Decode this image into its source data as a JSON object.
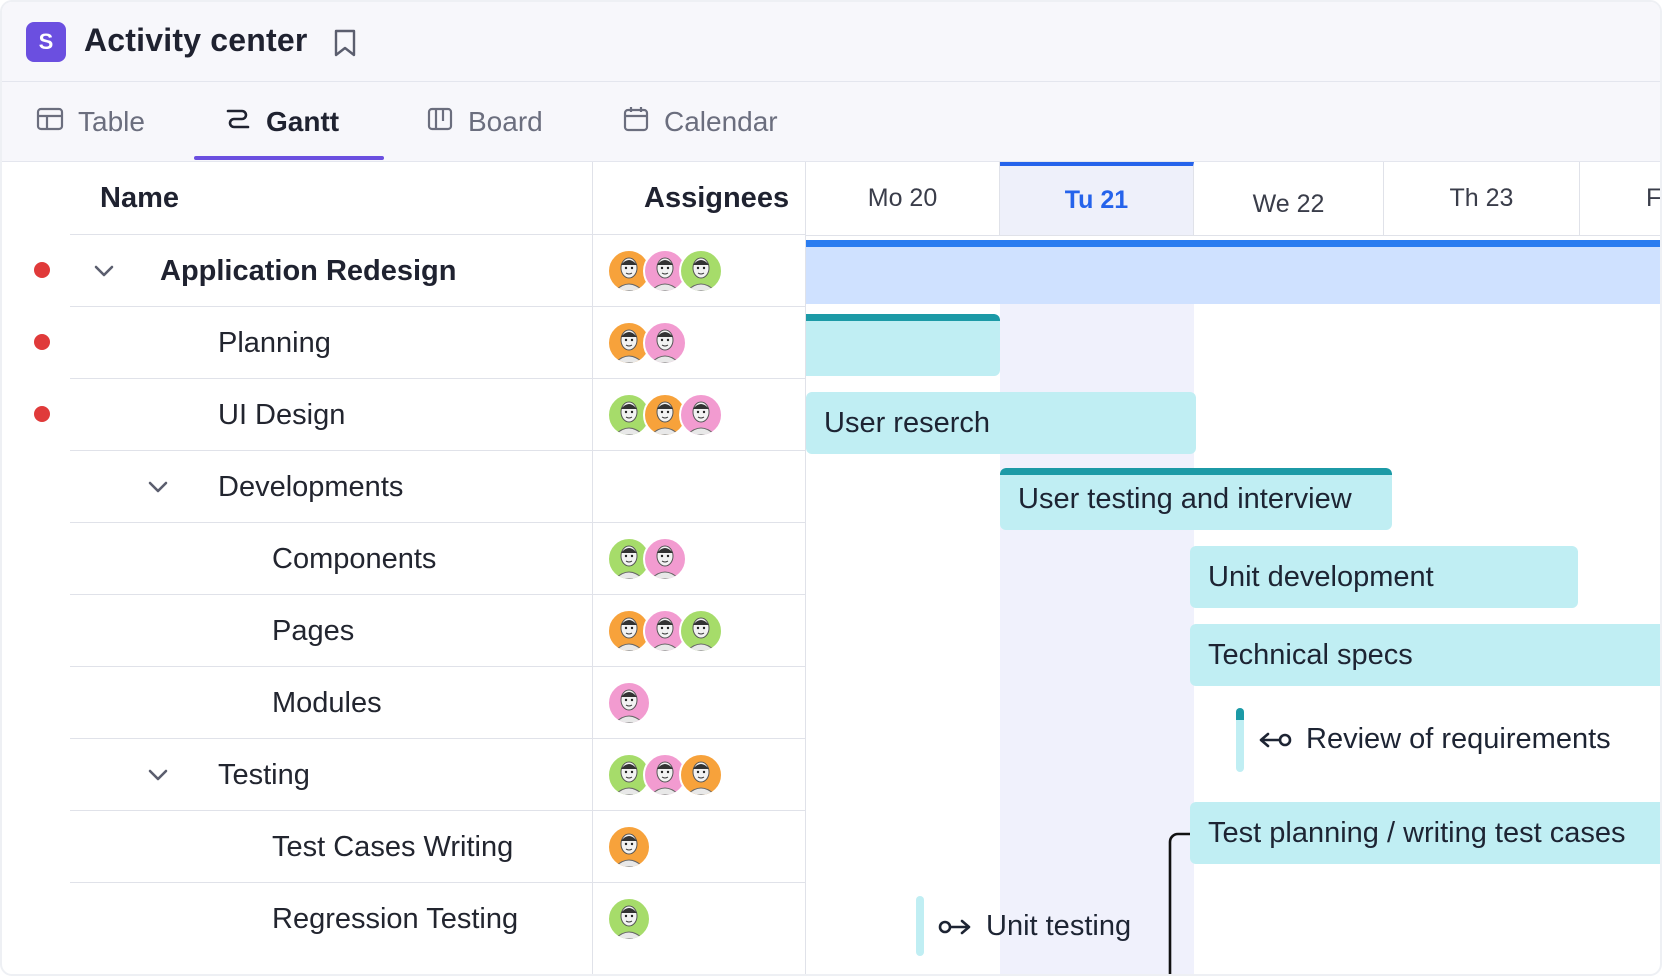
{
  "app": {
    "logo_letter": "S",
    "title": "Activity center"
  },
  "tabs": [
    {
      "label": "Table",
      "icon": "table-icon"
    },
    {
      "label": "Gantt",
      "icon": "gantt-icon"
    },
    {
      "label": "Board",
      "icon": "board-icon"
    },
    {
      "label": "Calendar",
      "icon": "calendar-icon"
    }
  ],
  "active_tab": "Gantt",
  "grid": {
    "headers": {
      "name": "Name",
      "assignees": "Assignees"
    },
    "rows": [
      {
        "name": "Application Redesign",
        "level": 0,
        "expanded": true,
        "status_dot": true,
        "assignees": [
          "orange",
          "pink",
          "green"
        ]
      },
      {
        "name": "Planning",
        "level": 1,
        "status_dot": true,
        "assignees": [
          "orange",
          "pink"
        ]
      },
      {
        "name": "UI Design",
        "level": 1,
        "status_dot": true,
        "assignees": [
          "green",
          "orange",
          "pink"
        ]
      },
      {
        "name": "Developments",
        "level": 1,
        "expanded": true,
        "assignees": []
      },
      {
        "name": "Components",
        "level": 2,
        "assignees": [
          "green",
          "pink"
        ]
      },
      {
        "name": "Pages",
        "level": 2,
        "assignees": [
          "orange",
          "pink",
          "green"
        ]
      },
      {
        "name": "Modules",
        "level": 2,
        "assignees": [
          "pink"
        ]
      },
      {
        "name": "Testing",
        "level": 1,
        "expanded": true,
        "assignees": [
          "green",
          "pink",
          "orange"
        ]
      },
      {
        "name": "Test Cases Writing",
        "level": 2,
        "assignees": [
          "orange"
        ]
      },
      {
        "name": "Regression Testing",
        "level": 2,
        "assignees": [
          "green"
        ]
      }
    ]
  },
  "timeline": {
    "days": [
      "Mo 20",
      "Tu 21",
      "We 22",
      "Th 23",
      "F"
    ],
    "today": "Tu 21",
    "tasks": [
      {
        "label": "User reserch"
      },
      {
        "label": "User testing and interview"
      },
      {
        "label": "Unit development"
      },
      {
        "label": "Technical specs"
      },
      {
        "label": "Test planning / writing test cases"
      }
    ],
    "milestones": [
      {
        "label": "Review of  requirements"
      },
      {
        "label": "Unit testing"
      }
    ]
  },
  "colors": {
    "accent": "#6b4fe0",
    "today": "#2563eb",
    "bar": "#c0eef3",
    "progress": "#1c9aa6",
    "summary": "#cfe1ff",
    "status_dot": "#e03a3a",
    "avatar_orange": "#f7a23b",
    "avatar_pink": "#f29bd0",
    "avatar_green": "#a6dc6a"
  }
}
